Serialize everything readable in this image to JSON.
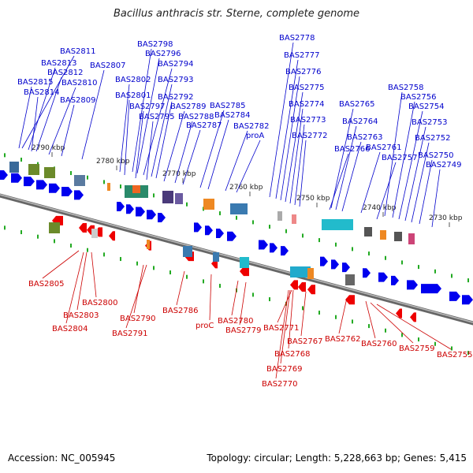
{
  "title": "Bacillus anthracis str. Sterne, complete genome",
  "footer": {
    "accession": "Accession: NC_005945",
    "topology": "Topology: circular; Length: 5,228,663 bp; Genes: 5,415"
  },
  "colors": {
    "forward": "#0000ee",
    "reverse": "#ee0000",
    "label_forward": "#0000cc",
    "label_reverse": "#cc0000",
    "backbone": "#888888",
    "tick": "#22aa22"
  },
  "scale_labels": [
    "2790 kbp",
    "2780 kbp",
    "2770 kbp",
    "2760 kbp",
    "2750 kbp",
    "2740 kbp",
    "2730 kbp"
  ],
  "top_gene_labels": [
    "BAS2811",
    "BAS2813",
    "BAS2812",
    "BAS2815",
    "BAS2810",
    "BAS2814",
    "BAS2809",
    "BAS2807",
    "BAS2798",
    "BAS2796",
    "BAS2794",
    "BAS2802",
    "BAS2793",
    "BAS2801",
    "BAS2792",
    "BAS2797",
    "BAS2789",
    "BAS2795",
    "BAS2788",
    "BAS2787",
    "BAS2785",
    "BAS2784",
    "BAS2782",
    "proA",
    "BAS2778",
    "BAS2777",
    "BAS2776",
    "BAS2775",
    "BAS2774",
    "BAS2773",
    "BAS2772",
    "BAS2765",
    "BAS2764",
    "BAS2766",
    "BAS2763",
    "BAS2761",
    "BAS2758",
    "BAS2756",
    "BAS2754",
    "BAS2753",
    "BAS2752",
    "BAS2757",
    "BAS2750",
    "BAS2749"
  ],
  "bottom_gene_labels": [
    "BAS2805",
    "BAS2800",
    "BAS2803",
    "BAS2804",
    "BAS2790",
    "BAS2791",
    "BAS2786",
    "proC",
    "BAS2780",
    "BAS2779",
    "BAS2771",
    "BAS2767",
    "BAS2768",
    "BAS2769",
    "BAS2770",
    "BAS2762",
    "BAS2760",
    "BAS2759",
    "BAS2755"
  ]
}
